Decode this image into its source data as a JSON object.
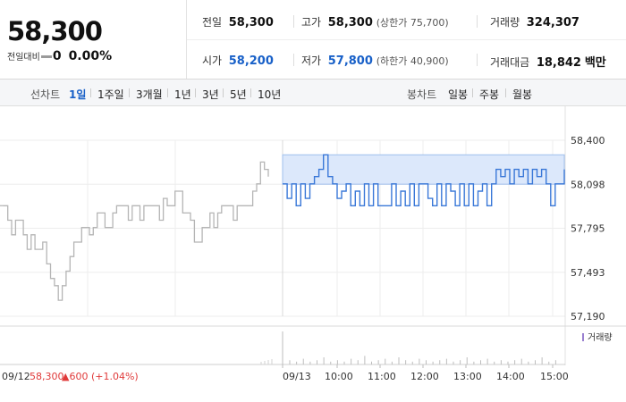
{
  "summary": {
    "price": "58,300",
    "change_label": "전일대비",
    "change_value": "0",
    "change_percent": "0.00%"
  },
  "stats": {
    "prev_close_label": "전일",
    "prev_close": "58,300",
    "high_label": "고가",
    "high": "58,300",
    "upper_limit": "(상한가 75,700)",
    "volume_label": "거래량",
    "volume": "324,307",
    "open_label": "시가",
    "open": "58,200",
    "low_label": "저가",
    "low": "57,800",
    "lower_limit": "(하한가 40,900)",
    "amount_label": "거래대금",
    "amount": "18,842",
    "amount_unit": "백만"
  },
  "tabs": {
    "line_label": "선차트",
    "line_tabs": [
      "1일",
      "1주일",
      "3개월",
      "1년",
      "3년",
      "5년",
      "10년"
    ],
    "candle_label": "봉차트",
    "candle_tabs": [
      "일봉",
      "주봉",
      "월봉"
    ]
  },
  "chart_footer": {
    "prev_date": "09/12",
    "prev_price": "58,300",
    "prev_change": "▲600 (+1.04%)",
    "volume_legend": "거래량"
  },
  "colors": {
    "today_line": "#3a78d8",
    "today_fill": "#dce8fb",
    "prev_line": "#b5b5b5",
    "rise": "#e03a3a"
  },
  "chart_data": {
    "type": "line",
    "y_ticks": [
      "58,400",
      "58,098",
      "57,795",
      "57,493",
      "57,190"
    ],
    "ylim": [
      57190,
      58400
    ],
    "x_labels": [
      "09/13",
      "10:00",
      "11:00",
      "12:00",
      "13:00",
      "14:00",
      "15:00"
    ],
    "series": [
      {
        "values": [
          57950,
          57950,
          57850,
          57750,
          57850,
          57850,
          57750,
          57650,
          57750,
          57650,
          57650,
          57700,
          57550,
          57450,
          57400,
          57300,
          57400,
          57500,
          57600,
          57700,
          57700,
          57800,
          57800,
          57750,
          57800,
          57900,
          57900,
          57800,
          57800,
          57900,
          57950,
          57950,
          57950,
          57850,
          57950,
          57950,
          57850,
          57950,
          57950,
          57950,
          57950,
          57850,
          58000,
          57950,
          57950,
          58050,
          58050,
          57900,
          57900,
          57850,
          57700,
          57700,
          57800,
          57800,
          57900,
          57800,
          57900,
          57950,
          57950,
          57950,
          57850,
          57950,
          57950,
          57950,
          57950,
          58050,
          58100,
          58250,
          58200,
          58150
        ]
      },
      {
        "values": [
          58100,
          58000,
          58100,
          57950,
          58100,
          58000,
          58100,
          58150,
          58200,
          58300,
          58150,
          58100,
          58000,
          58050,
          58100,
          57950,
          58050,
          57950,
          58100,
          57950,
          58100,
          57950,
          57950,
          57950,
          58100,
          57950,
          58050,
          57950,
          58100,
          57950,
          58100,
          58100,
          58000,
          57950,
          58100,
          57950,
          58100,
          58050,
          57950,
          58100,
          57950,
          58100,
          57950,
          58050,
          58100,
          57950,
          58100,
          58200,
          58150,
          58200,
          58100,
          58200,
          58150,
          58200,
          58100,
          58200,
          58150,
          58200,
          58100,
          57950,
          58100,
          58100,
          58200
        ]
      }
    ]
  }
}
